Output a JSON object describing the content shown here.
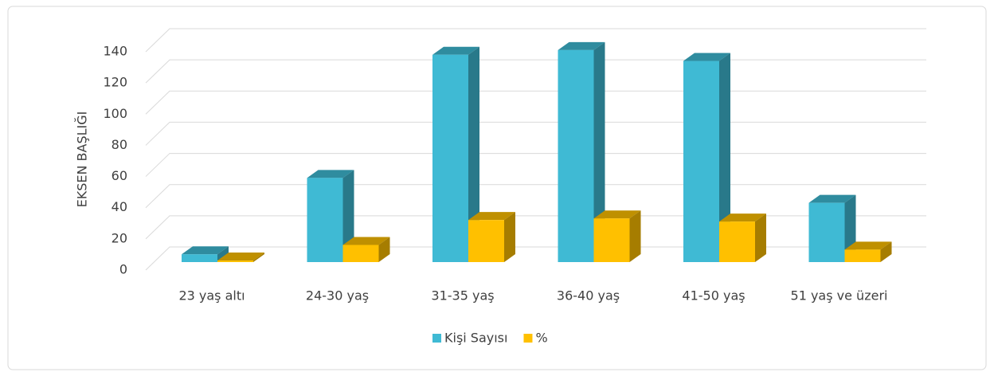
{
  "chart_data": {
    "type": "bar3d",
    "y_axis_label": "EKSEN BAŞLIĞI",
    "categories": [
      "23 yaş altı",
      "24-30 yaş",
      "31-35 yaş",
      "36-40 yaş",
      "41-50 yaş",
      "51 yaş ve üzeri"
    ],
    "series": [
      {
        "name": "Kişi Sayısı",
        "color": "#3fbad4",
        "values": [
          5,
          54,
          133,
          136,
          129,
          38
        ]
      },
      {
        "name": "%",
        "color": "#ffc000",
        "values": [
          1,
          11,
          27,
          28,
          26,
          8
        ]
      }
    ],
    "ylim": [
      0,
      140
    ],
    "yticks": [
      0,
      20,
      40,
      60,
      80,
      100,
      120,
      140
    ],
    "grid": true,
    "legend": "bottom"
  }
}
